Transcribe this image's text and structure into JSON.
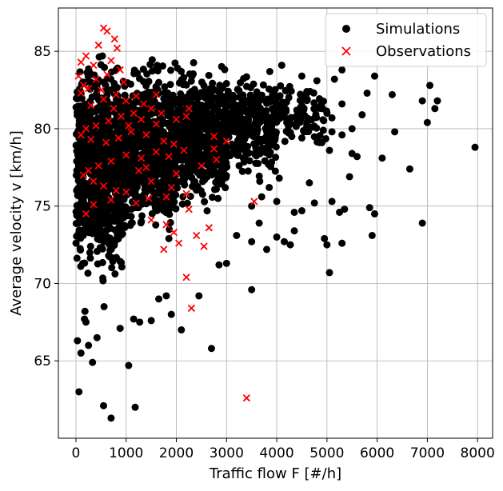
{
  "chart_data": {
    "type": "scatter",
    "title": "",
    "xlabel": "Traffic flow F [#/h]",
    "ylabel": "Average velocity v [km/h]",
    "xlim": [
      -350,
      8300
    ],
    "ylim": [
      60.0,
      87.8
    ],
    "xticks": [
      0,
      1000,
      2000,
      3000,
      4000,
      5000,
      6000,
      7000,
      8000
    ],
    "yticks": [
      65,
      70,
      75,
      80,
      85
    ],
    "grid": true,
    "legend_position": "top-right",
    "series": [
      {
        "name": "Simulations",
        "marker": "circle",
        "color": "#000000",
        "points": [
          [
            30,
            66.3
          ],
          [
            60,
            63.0
          ],
          [
            100,
            65.5
          ],
          [
            170,
            67.7
          ],
          [
            200,
            67.5
          ],
          [
            180,
            68.2
          ],
          [
            250,
            66.0
          ],
          [
            330,
            64.9
          ],
          [
            420,
            66.5
          ],
          [
            550,
            62.1
          ],
          [
            700,
            61.3
          ],
          [
            1050,
            64.7
          ],
          [
            1180,
            62.0
          ],
          [
            560,
            68.5
          ],
          [
            880,
            67.1
          ],
          [
            1150,
            67.7
          ],
          [
            1270,
            67.5
          ],
          [
            1500,
            67.6
          ],
          [
            1900,
            68.0
          ],
          [
            2100,
            67.0
          ],
          [
            2700,
            65.8
          ],
          [
            1650,
            69.0
          ],
          [
            1800,
            69.2
          ],
          [
            2450,
            69.2
          ],
          [
            3000,
            71.3
          ],
          [
            3500,
            69.6
          ],
          [
            2850,
            71.2
          ],
          [
            3200,
            73.1
          ],
          [
            3500,
            72.7
          ],
          [
            3650,
            73.9
          ],
          [
            3800,
            72.2
          ],
          [
            4000,
            73.0
          ],
          [
            4150,
            72.7
          ],
          [
            4270,
            72.5
          ],
          [
            4350,
            73.4
          ],
          [
            4350,
            74.6
          ],
          [
            4500,
            74.7
          ],
          [
            4650,
            76.5
          ],
          [
            4750,
            75.2
          ],
          [
            4950,
            72.9
          ],
          [
            5000,
            72.5
          ],
          [
            5050,
            70.7
          ],
          [
            5100,
            75.3
          ],
          [
            5250,
            74.6
          ],
          [
            5300,
            72.6
          ],
          [
            5350,
            74.8
          ],
          [
            5450,
            76.9
          ],
          [
            5500,
            78.4
          ],
          [
            5600,
            78.2
          ],
          [
            5500,
            80.0
          ],
          [
            5300,
            79.6
          ],
          [
            5100,
            79.8
          ],
          [
            5050,
            78.6
          ],
          [
            5000,
            81.0
          ],
          [
            5850,
            74.9
          ],
          [
            5950,
            74.5
          ],
          [
            5900,
            73.1
          ],
          [
            6100,
            78.1
          ],
          [
            6350,
            79.8
          ],
          [
            6650,
            77.4
          ],
          [
            6900,
            73.9
          ],
          [
            5950,
            83.4
          ],
          [
            5800,
            82.3
          ],
          [
            6300,
            82.2
          ],
          [
            6900,
            81.8
          ],
          [
            7050,
            82.8
          ],
          [
            7000,
            80.4
          ],
          [
            7150,
            81.3
          ],
          [
            7200,
            81.8
          ],
          [
            7950,
            78.8
          ],
          [
            5700,
            80.9
          ],
          [
            5300,
            81.6
          ],
          [
            5150,
            83.2
          ],
          [
            4800,
            83.1
          ],
          [
            4500,
            83.4
          ],
          [
            4100,
            84.1
          ],
          [
            4900,
            79.1
          ],
          [
            4700,
            80.1
          ],
          [
            4500,
            79.4
          ],
          [
            4300,
            79.5
          ],
          [
            4050,
            76.8
          ],
          [
            3850,
            76.2
          ],
          [
            3700,
            75.6
          ],
          [
            3500,
            75.0
          ],
          [
            3850,
            78.3
          ],
          [
            5300,
            83.8
          ],
          [
            5100,
            80.7
          ],
          [
            4400,
            81.2
          ],
          [
            4600,
            82.4
          ],
          [
            4200,
            80.4
          ],
          [
            3900,
            80.2
          ],
          [
            4000,
            75.3
          ]
        ],
        "dense_regions": [
          {
            "x": [
              0,
              1000
            ],
            "y": [
              69.0,
              85.8
            ],
            "count": 900
          },
          {
            "x": [
              1000,
              2000
            ],
            "y": [
              72.0,
              85.5
            ],
            "count": 700
          },
          {
            "x": [
              2000,
              3000
            ],
            "y": [
              74.0,
              85.0
            ],
            "count": 500
          },
          {
            "x": [
              3000,
              4000
            ],
            "y": [
              76.0,
              84.5
            ],
            "count": 280
          },
          {
            "x": [
              4000,
              5000
            ],
            "y": [
              78.0,
              83.8
            ],
            "count": 90
          }
        ]
      },
      {
        "name": "Observations",
        "marker": "x",
        "color": "#ff0000",
        "points": [
          [
            550,
            86.5
          ],
          [
            620,
            86.3
          ],
          [
            770,
            85.8
          ],
          [
            820,
            85.2
          ],
          [
            450,
            85.4
          ],
          [
            200,
            84.7
          ],
          [
            100,
            84.3
          ],
          [
            350,
            84.1
          ],
          [
            700,
            84.4
          ],
          [
            880,
            83.8
          ],
          [
            620,
            83.5
          ],
          [
            400,
            83.2
          ],
          [
            150,
            82.8
          ],
          [
            50,
            83.4
          ],
          [
            100,
            82.3
          ],
          [
            250,
            82.6
          ],
          [
            500,
            82.5
          ],
          [
            800,
            82.2
          ],
          [
            1000,
            81.8
          ],
          [
            1200,
            82.1
          ],
          [
            1350,
            81.6
          ],
          [
            1500,
            81.3
          ],
          [
            1700,
            81.0
          ],
          [
            2000,
            80.6
          ],
          [
            2200,
            80.8
          ],
          [
            2250,
            81.3
          ],
          [
            1600,
            80.3
          ],
          [
            1300,
            80.6
          ],
          [
            900,
            80.8
          ],
          [
            650,
            80.5
          ],
          [
            400,
            80.2
          ],
          [
            200,
            80.0
          ],
          [
            100,
            79.6
          ],
          [
            300,
            79.3
          ],
          [
            600,
            79.1
          ],
          [
            850,
            79.4
          ],
          [
            1100,
            79.8
          ],
          [
            1400,
            79.6
          ],
          [
            1750,
            79.2
          ],
          [
            1950,
            79.0
          ],
          [
            2150,
            78.6
          ],
          [
            1850,
            78.2
          ],
          [
            1600,
            78.5
          ],
          [
            1300,
            78.1
          ],
          [
            1000,
            78.3
          ],
          [
            700,
            77.9
          ],
          [
            450,
            77.6
          ],
          [
            250,
            77.3
          ],
          [
            150,
            77.0
          ],
          [
            350,
            76.6
          ],
          [
            550,
            76.3
          ],
          [
            800,
            76.0
          ],
          [
            1250,
            77.3
          ],
          [
            1400,
            77.5
          ],
          [
            1500,
            76.6
          ],
          [
            1900,
            76.2
          ],
          [
            2000,
            77.1
          ],
          [
            2200,
            75.8
          ],
          [
            1800,
            75.6
          ],
          [
            1450,
            75.5
          ],
          [
            1200,
            75.2
          ],
          [
            1000,
            75.9
          ],
          [
            700,
            75.4
          ],
          [
            350,
            75.1
          ],
          [
            200,
            74.5
          ],
          [
            1500,
            74.1
          ],
          [
            1800,
            73.8
          ],
          [
            1950,
            73.3
          ],
          [
            2050,
            72.6
          ],
          [
            1750,
            72.2
          ],
          [
            2400,
            73.1
          ],
          [
            2550,
            72.4
          ],
          [
            2650,
            73.6
          ],
          [
            2750,
            79.5
          ],
          [
            2750,
            78.7
          ],
          [
            2800,
            78.0
          ],
          [
            3000,
            79.2
          ],
          [
            3550,
            75.3
          ],
          [
            2200,
            70.4
          ],
          [
            2300,
            68.4
          ],
          [
            3400,
            62.6
          ],
          [
            2250,
            74.8
          ],
          [
            2500,
            77.6
          ],
          [
            1050,
            80.2
          ],
          [
            1150,
            81.0
          ],
          [
            750,
            81.3
          ],
          [
            300,
            81.5
          ],
          [
            550,
            81.9
          ],
          [
            950,
            83.0
          ],
          [
            1600,
            82.2
          ]
        ]
      }
    ]
  }
}
